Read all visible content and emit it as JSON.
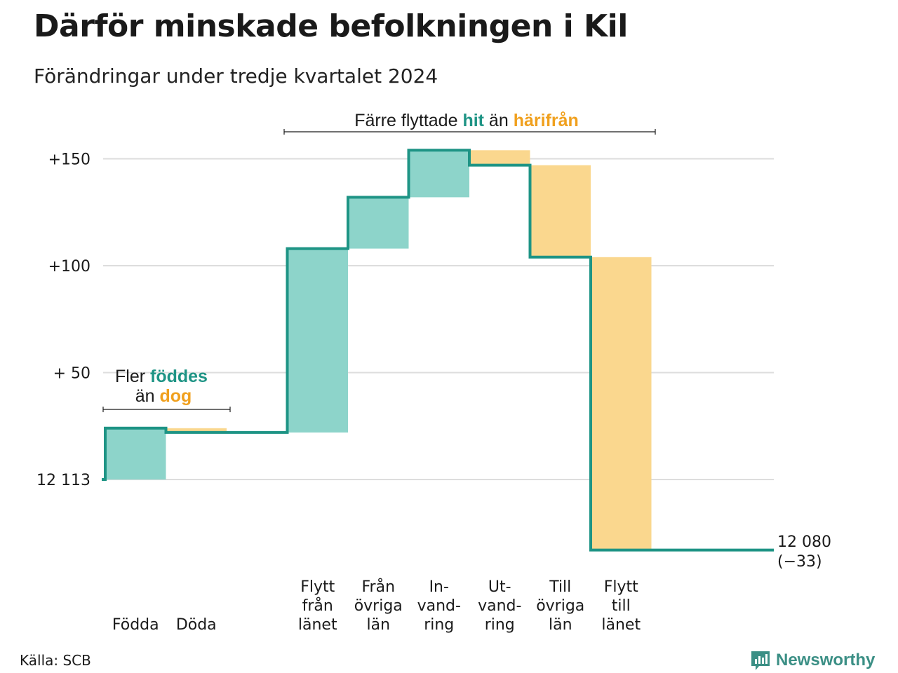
{
  "title": "Därför minskade befolkningen i Kil",
  "subtitle": "Förändringar under tredje kvartalet 2024",
  "source": "Källa: SCB",
  "brand": "Newsworthy",
  "colors": {
    "line": "#1e9485",
    "increase": "#8dd4ca",
    "decrease": "#fad78e",
    "teal_text": "#1e9485",
    "orange_text": "#f0a01e",
    "grid": "#dddddd"
  },
  "annotations": {
    "births": {
      "line1_prefix": "Fler ",
      "line1_highlight": "föddes",
      "line2_prefix": "än ",
      "line2_highlight": "dog"
    },
    "migration": {
      "prefix": "Färre flyttade ",
      "highlight1": "hit",
      "middle": " än ",
      "highlight2": "härifrån"
    }
  },
  "chart_data": {
    "type": "waterfall",
    "start_label": "12 113",
    "end_label": "12 080",
    "end_change_label": "(−33)",
    "y_ticks": [
      {
        "value": 150,
        "label": "+150"
      },
      {
        "value": 100,
        "label": "+100"
      },
      {
        "value": 50,
        "label": "+ 50"
      },
      {
        "value": 0,
        "label": "12 113"
      }
    ],
    "ylim": [
      -33,
      155
    ],
    "categories": [
      {
        "label": [
          "Födda"
        ],
        "change": 24,
        "base": 0
      },
      {
        "label": [
          "Döda"
        ],
        "change": -2,
        "base": 24
      },
      {
        "label": [
          ""
        ],
        "change": 0,
        "base": 22
      },
      {
        "label": [
          "Flytt",
          "från",
          "länet"
        ],
        "change": 86,
        "base": 22
      },
      {
        "label": [
          "Från",
          "övriga",
          "län"
        ],
        "change": 24,
        "base": 108
      },
      {
        "label": [
          "In-",
          "vand-",
          "ring"
        ],
        "change": 22,
        "base": 132
      },
      {
        "label": [
          "Ut-",
          "vand-",
          "ring"
        ],
        "change": -7,
        "base": 154
      },
      {
        "label": [
          "Till",
          "övriga",
          "län"
        ],
        "change": -43,
        "base": 147
      },
      {
        "label": [
          "Flytt",
          "till",
          "länet"
        ],
        "change": -137,
        "base": 104
      }
    ],
    "final_value": -33
  }
}
